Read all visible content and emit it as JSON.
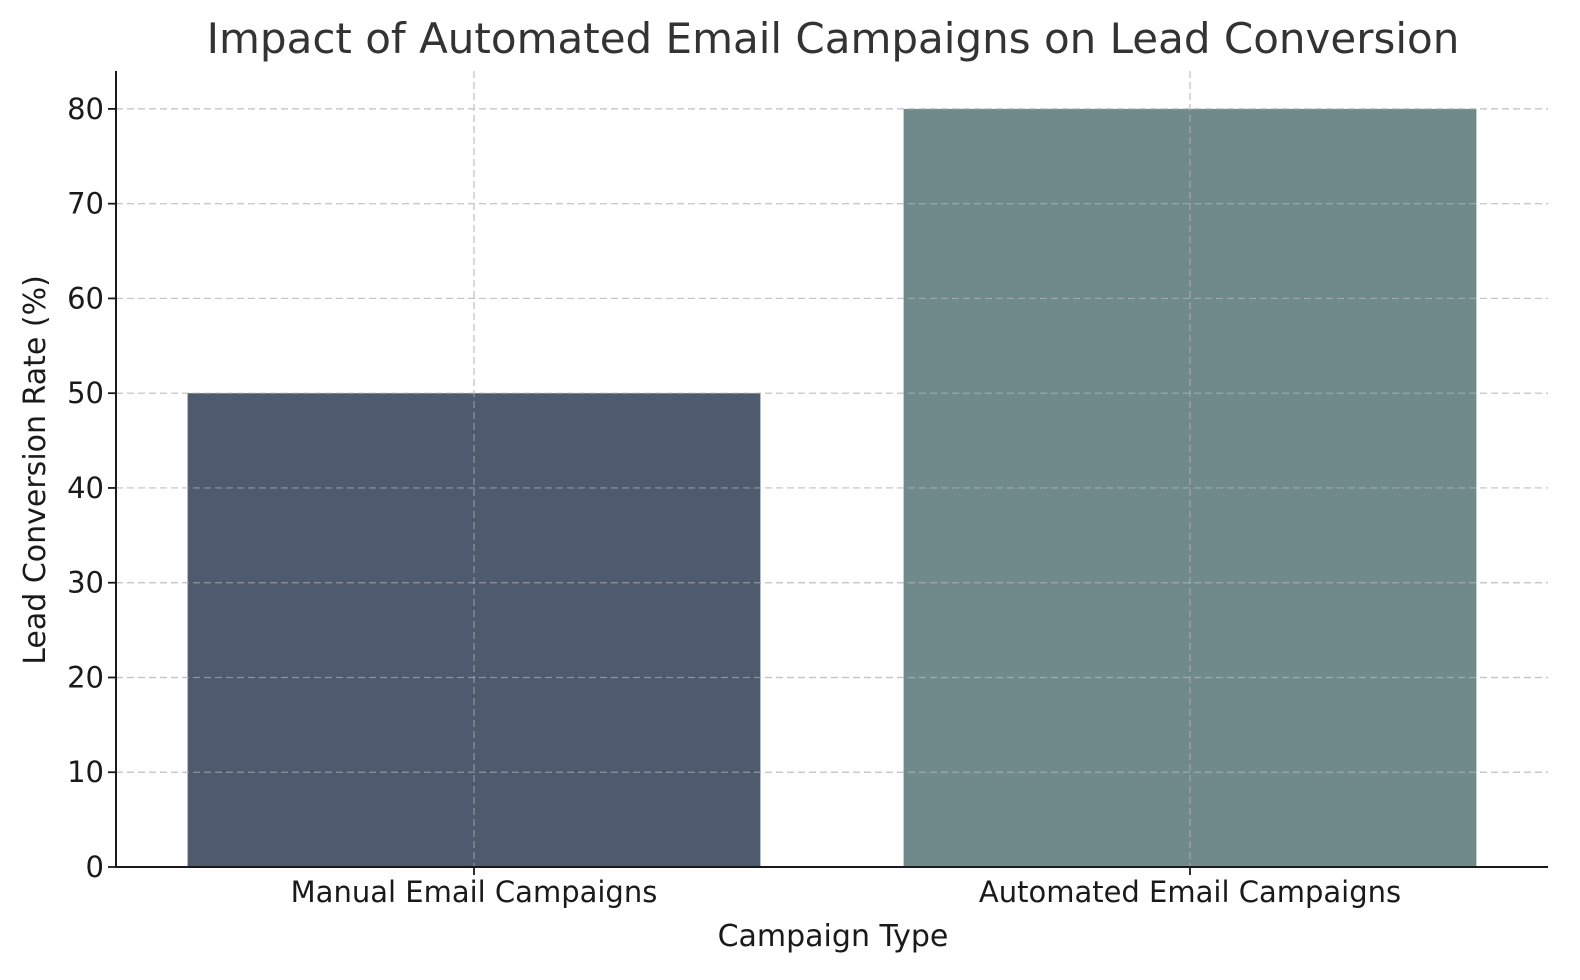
{
  "chart_data": {
    "type": "bar",
    "title": "Impact of Automated Email Campaigns on Lead Conversion",
    "xlabel": "Campaign Type",
    "ylabel": "Lead Conversion Rate (%)",
    "categories": [
      "Manual Email Campaigns",
      "Automated Email Campaigns"
    ],
    "values": [
      50,
      80
    ],
    "colors": [
      "#4e5b6e",
      "#708a8c"
    ],
    "ylim": [
      0,
      84
    ],
    "yticks": [
      "0",
      "10",
      "20",
      "30",
      "40",
      "50",
      "60",
      "70",
      "80"
    ],
    "grid": true,
    "legend": "none"
  }
}
